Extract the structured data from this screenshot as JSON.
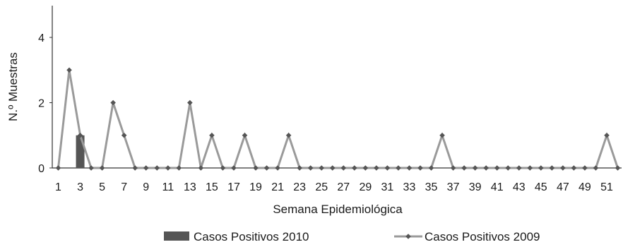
{
  "chart_data": {
    "type": "bar",
    "title": "",
    "xlabel": "Semana Epidemiológica",
    "ylabel": "N.º Muestras",
    "ylim": [
      0,
      5
    ],
    "yticks": [
      "0",
      "2",
      "4"
    ],
    "grid": false,
    "legend_position": "bottom",
    "categories": [
      "1",
      "2",
      "3",
      "4",
      "5",
      "6",
      "7",
      "8",
      "9",
      "10",
      "11",
      "12",
      "13",
      "14",
      "15",
      "16",
      "17",
      "18",
      "19",
      "20",
      "21",
      "22",
      "23",
      "24",
      "25",
      "26",
      "27",
      "28",
      "29",
      "30",
      "31",
      "32",
      "33",
      "34",
      "35",
      "36",
      "37",
      "38",
      "39",
      "40",
      "41",
      "42",
      "43",
      "44",
      "45",
      "46",
      "47",
      "48",
      "49",
      "50",
      "51",
      "52"
    ],
    "xtick_labels": [
      "1",
      "3",
      "5",
      "7",
      "9",
      "11",
      "13",
      "15",
      "17",
      "19",
      "21",
      "23",
      "25",
      "27",
      "29",
      "31",
      "33",
      "35",
      "37",
      "39",
      "41",
      "43",
      "45",
      "47",
      "49",
      "51"
    ],
    "series": [
      {
        "name": "Casos Positivos 2010",
        "type": "bar",
        "color": "#555555",
        "values": [
          0,
          0,
          1,
          0,
          0,
          0,
          0,
          0,
          0,
          0,
          0,
          0,
          0,
          0,
          0,
          0,
          0,
          0,
          0,
          0,
          0,
          0,
          0,
          0,
          0,
          0,
          0,
          0,
          0,
          0,
          0,
          0,
          0,
          0,
          0,
          0,
          0,
          0,
          0,
          0,
          0,
          0,
          0,
          0,
          0,
          0,
          0,
          0,
          0,
          0,
          0,
          0
        ]
      },
      {
        "name": "Casos Positivos 2009",
        "type": "line",
        "color": "#9a9a9a",
        "marker_color": "#555555",
        "values": [
          0,
          3,
          1,
          0,
          0,
          2,
          1,
          0,
          0,
          0,
          0,
          0,
          2,
          0,
          1,
          0,
          0,
          1,
          0,
          0,
          0,
          1,
          0,
          0,
          0,
          0,
          0,
          0,
          0,
          0,
          0,
          0,
          0,
          0,
          0,
          1,
          0,
          0,
          0,
          0,
          0,
          0,
          0,
          0,
          0,
          0,
          0,
          0,
          0,
          0,
          1,
          0
        ]
      }
    ]
  }
}
